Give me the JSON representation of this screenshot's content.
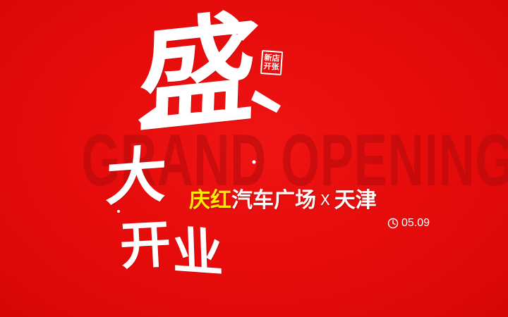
{
  "background_color": "#e50b0b",
  "background_text": "GRAND OPENING",
  "headline": {
    "chars": [
      "盛",
      "大",
      "开",
      "业"
    ],
    "color": "#ffffff"
  },
  "seal": {
    "text": "新店开张"
  },
  "subtitle": {
    "highlight": "庆红",
    "highlight_color": "#ffea00",
    "rest": "汽车广场",
    "separator": "X",
    "city": "天津"
  },
  "date": {
    "icon": "clock-icon",
    "value": "05.09"
  }
}
